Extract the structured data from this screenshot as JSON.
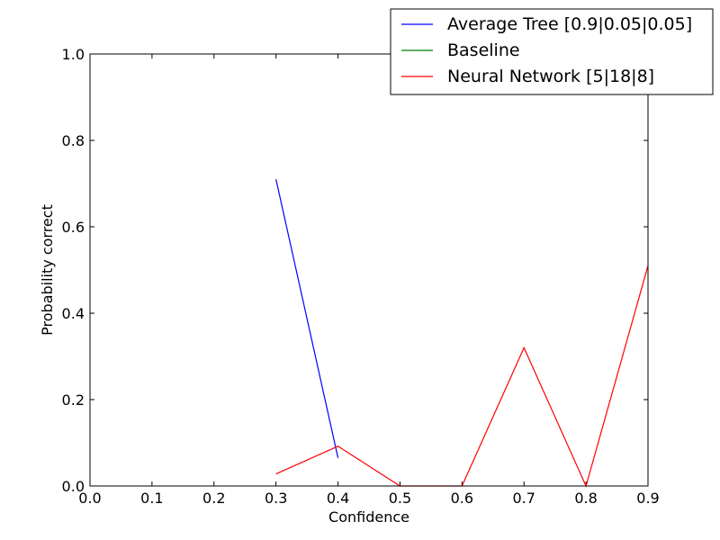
{
  "chart_data": {
    "type": "line",
    "title": "",
    "xlabel": "Confidence",
    "ylabel": "Probability correct",
    "xlim": [
      0.0,
      0.9
    ],
    "ylim": [
      0.0,
      1.0
    ],
    "xticks": [
      "0.0",
      "0.1",
      "0.2",
      "0.3",
      "0.4",
      "0.5",
      "0.6",
      "0.7",
      "0.8",
      "0.9"
    ],
    "yticks": [
      "0.0",
      "0.2",
      "0.4",
      "0.6",
      "0.8",
      "1.0"
    ],
    "grid": false,
    "legend_position": "top-right",
    "series": [
      {
        "name": "Average Tree [0.9|0.05|0.05]",
        "color": "#0000ff",
        "x": [
          0.3,
          0.4
        ],
        "y": [
          0.71,
          0.065
        ]
      },
      {
        "name": "Baseline",
        "color": "#008000",
        "x": [],
        "y": []
      },
      {
        "name": "Neural Network [5|18|8]",
        "color": "#ff0000",
        "x": [
          0.3,
          0.4,
          0.5,
          0.6,
          0.7,
          0.8,
          0.9
        ],
        "y": [
          0.028,
          0.092,
          0.0,
          0.0,
          0.32,
          0.0,
          0.51
        ]
      }
    ]
  }
}
